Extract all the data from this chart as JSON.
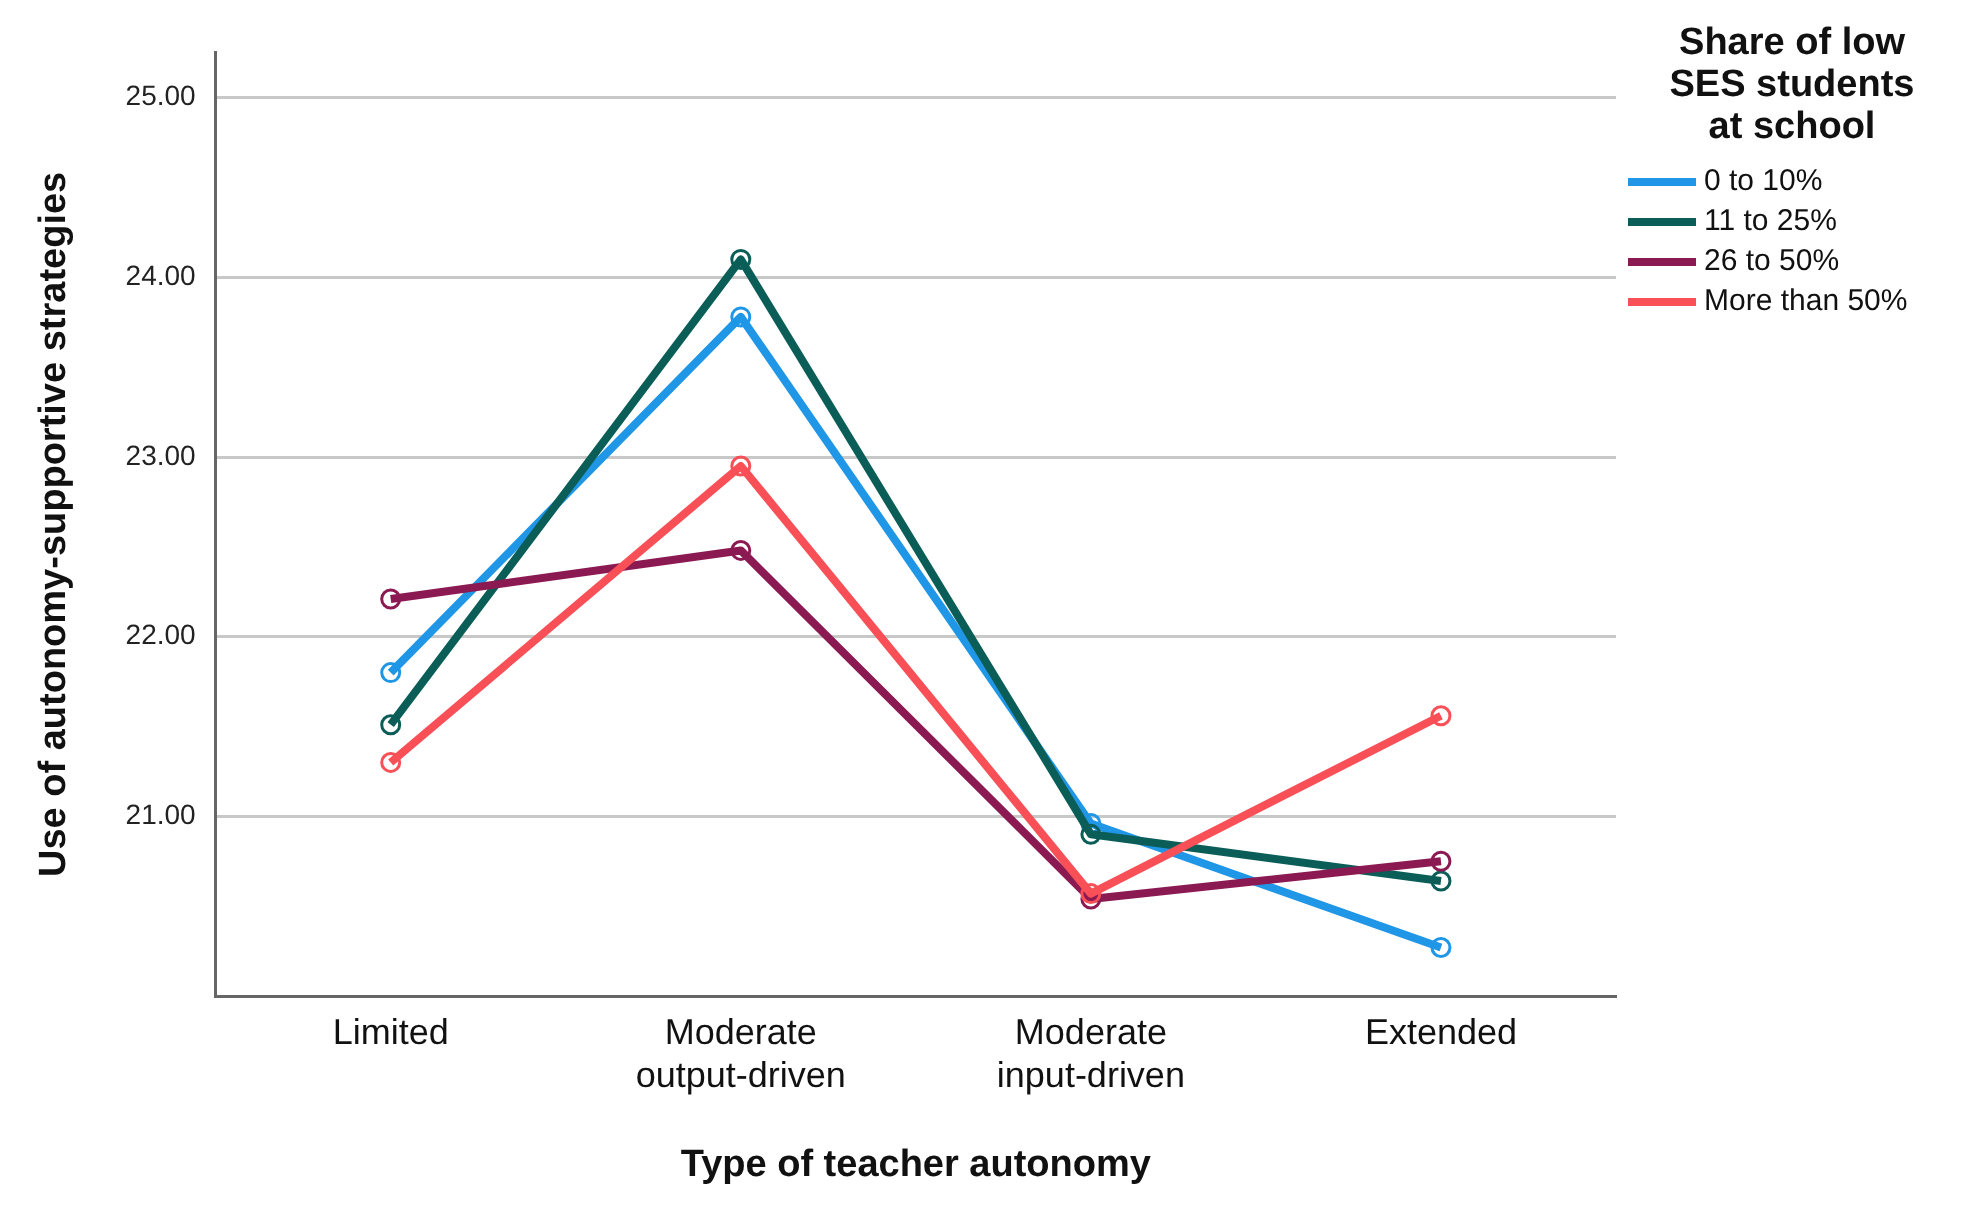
{
  "chart_data": {
    "type": "line",
    "xlabel": "Type of teacher autonomy",
    "ylabel": "Use of autonomy-supportive strategies",
    "legend_title": "Share of low SES students at school",
    "categories": [
      "Limited",
      "Moderate output-driven",
      "Moderate input-driven",
      "Extended"
    ],
    "series": [
      {
        "name": "0 to 10%",
        "color": "#1f96e6",
        "values": [
          21.8,
          23.78,
          20.96,
          20.27
        ]
      },
      {
        "name": "11 to 25%",
        "color": "#0b5e57",
        "values": [
          21.51,
          24.1,
          20.9,
          20.64
        ]
      },
      {
        "name": "26 to 50%",
        "color": "#8c1a52",
        "values": [
          22.21,
          22.48,
          20.54,
          20.75
        ]
      },
      {
        "name": "More than 50%",
        "color": "#f94f57",
        "values": [
          21.3,
          22.95,
          20.57,
          21.56
        ]
      }
    ],
    "ylim": [
      20.0,
      25.25
    ],
    "yticks": [
      {
        "value": 21,
        "label": "21.00"
      },
      {
        "value": 22,
        "label": "22.00"
      },
      {
        "value": 23,
        "label": "23.00"
      },
      {
        "value": 24,
        "label": "24.00"
      },
      {
        "value": 25,
        "label": "25.00"
      }
    ],
    "grid": "y",
    "legend": "top right",
    "marker": "circle",
    "line_style": "solid"
  }
}
